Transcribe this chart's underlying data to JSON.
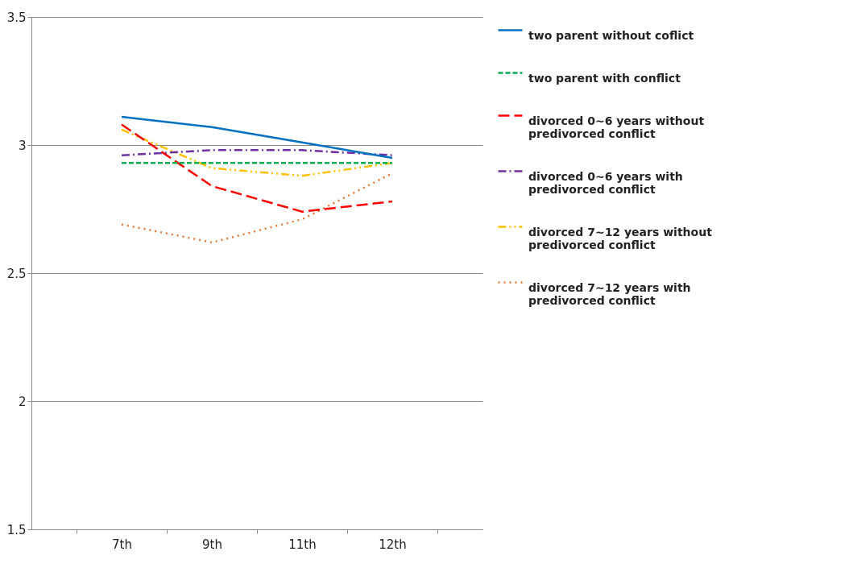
{
  "chart_data": {
    "type": "line",
    "categories": [
      "7th",
      "9th",
      "11th",
      "12th"
    ],
    "ylim": [
      1.5,
      3.5
    ],
    "yticks": [
      1.5,
      2,
      2.5,
      3,
      3.5
    ],
    "grid": "y",
    "legend": "right",
    "series": [
      {
        "name": "two parent without coflict",
        "color": "#0070c0",
        "line_style": "solid",
        "values": [
          3.11,
          3.07,
          3.01,
          2.95
        ]
      },
      {
        "name": "two parent with conflict",
        "color": "#00b050",
        "line_style": "dashed",
        "values": [
          2.93,
          2.93,
          2.93,
          2.93
        ]
      },
      {
        "name": "divorced 0~6 years without predivorced conflict",
        "color": "#ff0000",
        "line_style": "longdash",
        "values": [
          3.08,
          2.84,
          2.74,
          2.78
        ]
      },
      {
        "name": "divorced 0~6 years with predivorced conflict",
        "color": "#7030a0",
        "line_style": "dashdot",
        "values": [
          2.96,
          2.98,
          2.98,
          2.96
        ]
      },
      {
        "name": "divorced 7~12 years without predivorced conflict",
        "color": "#ffc000",
        "line_style": "dashdotdot",
        "values": [
          3.06,
          2.91,
          2.88,
          2.93
        ]
      },
      {
        "name": "divorced 7~12 years with predivorced conflict",
        "color": "#e07b39",
        "line_style": "dotted",
        "values": [
          2.69,
          2.62,
          2.71,
          2.89
        ]
      }
    ]
  }
}
